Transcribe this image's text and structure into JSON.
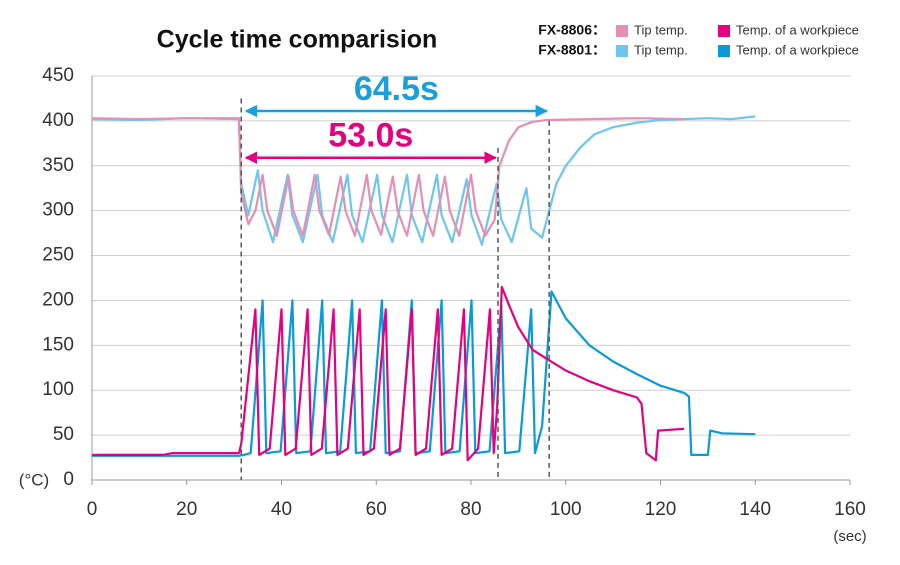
{
  "chart_data": {
    "type": "line",
    "title": "Cycle time comparision",
    "xlabel": "(sec)",
    "ylabel": "(°C)",
    "xlim": [
      0,
      160
    ],
    "xticks": [
      0,
      20,
      40,
      60,
      80,
      100,
      120,
      140,
      160
    ],
    "ylim": [
      0,
      450
    ],
    "yticks": [
      0,
      50,
      100,
      150,
      200,
      250,
      300,
      350,
      400,
      450
    ],
    "grid": true,
    "legend_groups": [
      "FX-8806：",
      "FX-8801："
    ],
    "series": [
      {
        "name": "Tip temp.",
        "color": "#e68fb4",
        "x": [
          0,
          10,
          20,
          31,
          31.5,
          33,
          34.5,
          36,
          37,
          39,
          41.5,
          42.5,
          44.5,
          47,
          48,
          50,
          52.5,
          53.5,
          55.5,
          58,
          59,
          61,
          63.5,
          64.5,
          66.5,
          69,
          70,
          72,
          74.5,
          75.5,
          77.5,
          80,
          81,
          83,
          85,
          86,
          88,
          90,
          93,
          96,
          105,
          115,
          125
        ],
        "values": [
          403,
          402,
          403,
          403,
          320,
          285,
          300,
          340,
          300,
          272,
          338,
          300,
          272,
          340,
          300,
          273,
          338,
          300,
          272,
          340,
          300,
          273,
          338,
          300,
          272,
          340,
          300,
          272,
          338,
          300,
          272,
          340,
          300,
          272,
          290,
          350,
          378,
          393,
          399,
          401,
          402,
          403,
          402
        ]
      },
      {
        "name": "Temp. of a workpiece",
        "color": "#e4007f",
        "x": [
          0,
          15,
          17,
          31,
          31.5,
          34.5,
          35.3,
          37.5,
          40,
          40.8,
          43,
          45.5,
          46.3,
          48.5,
          51,
          51.8,
          54,
          56.5,
          57.3,
          59.5,
          62,
          62.8,
          65,
          67.5,
          68.3,
          70.5,
          73,
          73.8,
          76,
          78.5,
          79.3,
          81.5,
          84,
          84.8,
          85.5,
          86.5,
          88,
          90,
          93,
          96,
          100,
          105,
          110,
          115,
          116,
          117,
          119,
          119.5,
          125
        ],
        "values": [
          28,
          28,
          30,
          30,
          40,
          190,
          28,
          35,
          190,
          28,
          35,
          190,
          28,
          35,
          190,
          28,
          35,
          190,
          28,
          35,
          190,
          28,
          35,
          190,
          28,
          35,
          190,
          28,
          35,
          190,
          22,
          35,
          190,
          30,
          80,
          215,
          195,
          170,
          145,
          135,
          122,
          110,
          100,
          92,
          85,
          30,
          22,
          55,
          57
        ]
      },
      {
        "name": "Tip temp.",
        "color": "#6ec6ee",
        "x": [
          0,
          10,
          20,
          31,
          31.5,
          33,
          35,
          36,
          38.2,
          41.3,
          42.3,
          44.5,
          47.6,
          48.6,
          50.8,
          53.9,
          54.9,
          57.1,
          60.2,
          61.2,
          63.4,
          66.5,
          67.5,
          69.7,
          72.8,
          73.8,
          76,
          79.1,
          80.1,
          82.3,
          85.4,
          86.4,
          88.6,
          91.7,
          92.7,
          95,
          96.5,
          98,
          100,
          103,
          106,
          110,
          115,
          120,
          130,
          135,
          140
        ],
        "values": [
          402,
          401,
          403,
          402,
          330,
          295,
          345,
          300,
          265,
          340,
          295,
          265,
          340,
          295,
          265,
          340,
          295,
          265,
          340,
          295,
          265,
          340,
          295,
          265,
          340,
          295,
          265,
          335,
          295,
          262,
          330,
          290,
          265,
          325,
          280,
          270,
          300,
          330,
          350,
          370,
          385,
          393,
          398,
          401,
          403,
          402,
          405
        ]
      },
      {
        "name": "Temp. of a workpiece",
        "color": "#0a9ad8",
        "x": [
          0,
          31,
          32,
          33.5,
          36,
          36.8,
          39.8,
          42.3,
          43.1,
          46.1,
          48.6,
          49.4,
          52.4,
          54.9,
          55.7,
          58.7,
          61.2,
          62,
          65,
          67.5,
          68.3,
          71.3,
          73.8,
          74.6,
          77.6,
          80.1,
          80.9,
          83.9,
          86.4,
          87.2,
          90.2,
          92.7,
          93.5,
          95,
          97,
          100,
          105,
          110,
          115,
          120,
          125,
          126,
          126.5,
          130,
          130.5,
          133,
          140
        ],
        "values": [
          27,
          27,
          28,
          30,
          200,
          30,
          32,
          200,
          30,
          32,
          200,
          30,
          32,
          200,
          30,
          32,
          200,
          30,
          32,
          200,
          30,
          32,
          200,
          30,
          32,
          200,
          30,
          32,
          195,
          30,
          32,
          190,
          30,
          60,
          210,
          180,
          150,
          132,
          118,
          105,
          97,
          93,
          28,
          28,
          55,
          52,
          51
        ]
      }
    ],
    "vlines": [
      {
        "x": 31.5,
        "top": 425
      },
      {
        "x": 85.7,
        "top": 370
      },
      {
        "x": 96.5,
        "top": 400
      }
    ],
    "annotations": [
      {
        "text": "64.5s",
        "color": "#1a9fdc",
        "x": [
          32.5,
          96
        ],
        "y": 411
      },
      {
        "text": "53.0s",
        "color": "#e4007f",
        "x": [
          32.5,
          85.2
        ],
        "y": 359
      }
    ]
  }
}
